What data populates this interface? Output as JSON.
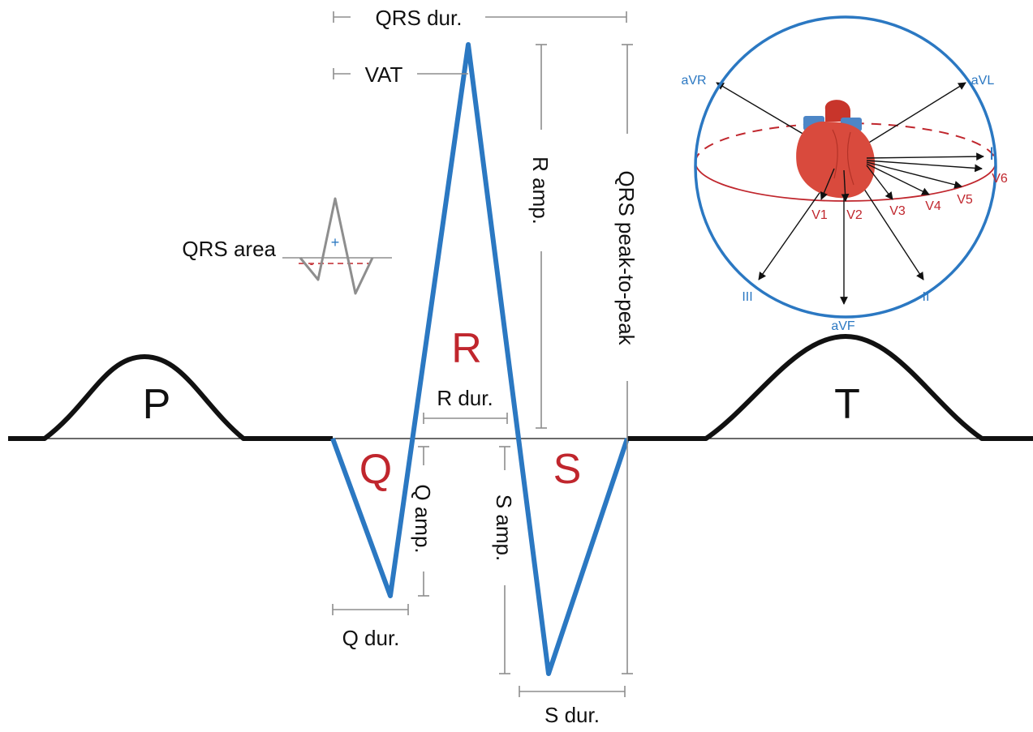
{
  "colors": {
    "baseline": "#111111",
    "qrs_wave": "#2b78c2",
    "measure": "#8e8e8e",
    "wave_label_red": "#c0262d",
    "sphere": "#2b78c2",
    "horizontal_plane": "#c0262d",
    "heart_fill": "#d94a3d",
    "heart_vessels": "#4d86c6"
  },
  "waves": {
    "p": "P",
    "q": "Q",
    "r": "R",
    "s": "S",
    "t": "T"
  },
  "measurements": {
    "qrs_dur": "QRS dur.",
    "vat": "VAT",
    "r_amp": "R amp.",
    "qrs_peak_to_peak": "QRS peak-to-peak",
    "qrs_area": "QRS area",
    "area_plus": "+",
    "area_minus": "-",
    "r_dur": "R dur.",
    "q_amp": "Q amp.",
    "s_amp": "S amp.",
    "q_dur": "Q dur.",
    "s_dur": "S dur."
  },
  "leads": {
    "avr": "aVR",
    "avl": "aVL",
    "i": "I",
    "v6": "V6",
    "v5": "V5",
    "v4": "V4",
    "v3": "V3",
    "v2": "V2",
    "v1": "V1",
    "iii": "III",
    "avf": "aVF",
    "ii": "II"
  }
}
